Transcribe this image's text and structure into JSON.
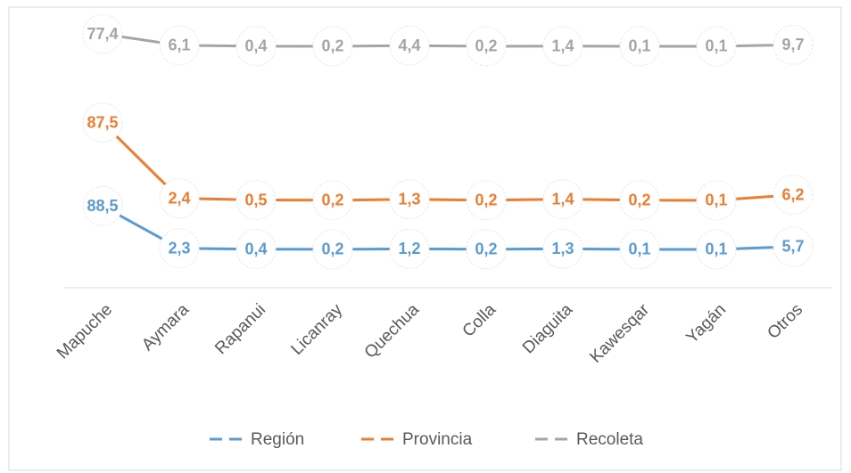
{
  "chart_data": {
    "type": "line",
    "categories": [
      "Mapuche",
      "Aymara",
      "Rapanui",
      "Licanray",
      "Quechua",
      "Colla",
      "Diaguita",
      "Kawesqar",
      "Yagán",
      "Otros"
    ],
    "series": [
      {
        "name": "Región",
        "color": "#5b9bd5",
        "values": [
          88.5,
          2.3,
          0.4,
          0.2,
          1.2,
          0.2,
          1.3,
          0.1,
          0.1,
          5.7
        ],
        "value_labels": [
          "88,5",
          "2,3",
          "0,4",
          "0,2",
          "1,2",
          "0,2",
          "1,3",
          "0,1",
          "0,1",
          "5,7"
        ]
      },
      {
        "name": "Provincia",
        "color": "#ed7d31",
        "values": [
          87.5,
          2.4,
          0.5,
          0.2,
          1.3,
          0.2,
          1.4,
          0.2,
          0.1,
          6.2
        ],
        "value_labels": [
          "87,5",
          "2,4",
          "0,5",
          "0,2",
          "1,3",
          "0,2",
          "1,4",
          "0,2",
          "0,1",
          "6,2"
        ]
      },
      {
        "name": "Recoleta",
        "color": "#a5a5a5",
        "values": [
          77.4,
          6.1,
          0.4,
          0.2,
          4.4,
          0.2,
          1.4,
          0.1,
          0.1,
          9.7
        ],
        "value_labels": [
          "77,4",
          "6,1",
          "0,4",
          "0,2",
          "4,4",
          "0,2",
          "1,4",
          "0,1",
          "0,1",
          "9,7"
        ]
      }
    ],
    "legend": "bottom"
  }
}
